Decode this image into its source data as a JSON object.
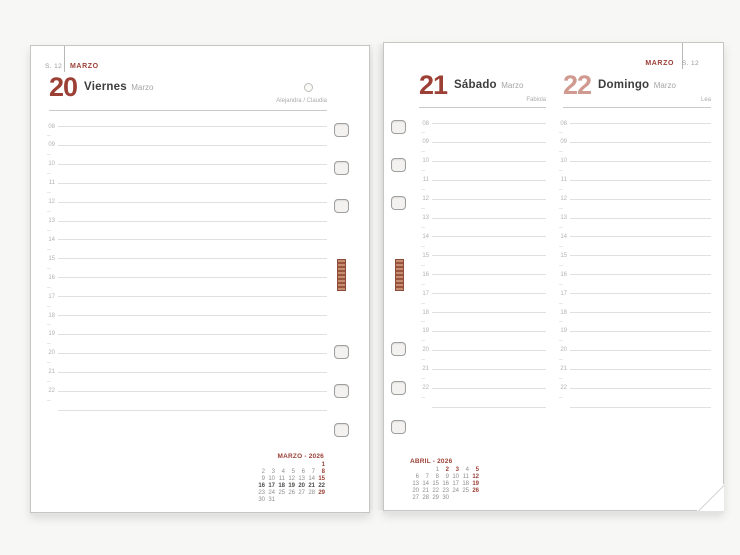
{
  "colors": {
    "accent": "#9c4036",
    "sunday_accent": "#d09a90",
    "text_dark": "#3d3d3d",
    "text_gray": "#a5a5a5",
    "line_gray": "#e0e0e0"
  },
  "hours": [
    "08",
    "09",
    "10",
    "11",
    "12",
    "13",
    "14",
    "15",
    "16",
    "17",
    "18",
    "19",
    "20",
    "21",
    "22"
  ],
  "left_page": {
    "week_label": "S. 12",
    "month_label": "MARZO",
    "day_number": "20",
    "day_name": "Viernes",
    "day_month": "Marzo",
    "saints": "Alejandra / Claudia",
    "icons": {
      "moon_phase": "circle-outline"
    },
    "mini_calendar": {
      "title": "MARZO - 2026",
      "weekday_start": "monday",
      "weeks": [
        [
          {
            "d": "",
            "cls": ""
          },
          {
            "d": "",
            "cls": ""
          },
          {
            "d": "",
            "cls": ""
          },
          {
            "d": "",
            "cls": ""
          },
          {
            "d": "",
            "cls": ""
          },
          {
            "d": "",
            "cls": ""
          },
          {
            "d": "1",
            "cls": "sun"
          }
        ],
        [
          {
            "d": "2",
            "cls": ""
          },
          {
            "d": "3",
            "cls": ""
          },
          {
            "d": "4",
            "cls": ""
          },
          {
            "d": "5",
            "cls": ""
          },
          {
            "d": "6",
            "cls": ""
          },
          {
            "d": "7",
            "cls": ""
          },
          {
            "d": "8",
            "cls": "sun"
          }
        ],
        [
          {
            "d": "9",
            "cls": ""
          },
          {
            "d": "10",
            "cls": ""
          },
          {
            "d": "11",
            "cls": ""
          },
          {
            "d": "12",
            "cls": ""
          },
          {
            "d": "13",
            "cls": ""
          },
          {
            "d": "14",
            "cls": ""
          },
          {
            "d": "15",
            "cls": "sun"
          }
        ],
        [
          {
            "d": "16",
            "cls": "cw"
          },
          {
            "d": "17",
            "cls": "cw"
          },
          {
            "d": "18",
            "cls": "cw"
          },
          {
            "d": "19",
            "cls": "cw"
          },
          {
            "d": "20",
            "cls": "today"
          },
          {
            "d": "21",
            "cls": "cw"
          },
          {
            "d": "22",
            "cls": "cw sun"
          }
        ],
        [
          {
            "d": "23",
            "cls": ""
          },
          {
            "d": "24",
            "cls": ""
          },
          {
            "d": "25",
            "cls": ""
          },
          {
            "d": "26",
            "cls": ""
          },
          {
            "d": "27",
            "cls": ""
          },
          {
            "d": "28",
            "cls": ""
          },
          {
            "d": "29",
            "cls": "sun"
          }
        ],
        [
          {
            "d": "30",
            "cls": ""
          },
          {
            "d": "31",
            "cls": ""
          },
          {
            "d": "",
            "cls": ""
          },
          {
            "d": "",
            "cls": ""
          },
          {
            "d": "",
            "cls": ""
          },
          {
            "d": "",
            "cls": ""
          },
          {
            "d": "",
            "cls": ""
          }
        ]
      ]
    }
  },
  "right_page": {
    "month_label": "MARZO",
    "week_label": "S. 12",
    "columns": [
      {
        "day_number": "21",
        "day_name": "Sábado",
        "day_month": "Marzo",
        "saints": "Fabiola"
      },
      {
        "day_number": "22",
        "day_name": "Domingo",
        "day_month": "Marzo",
        "saints": "Lea"
      }
    ],
    "mini_calendar": {
      "title": "ABRIL - 2026",
      "weekday_start": "monday",
      "weeks": [
        [
          {
            "d": "",
            "cls": ""
          },
          {
            "d": "",
            "cls": ""
          },
          {
            "d": "1",
            "cls": ""
          },
          {
            "d": "2",
            "cls": "hol"
          },
          {
            "d": "3",
            "cls": "hol"
          },
          {
            "d": "4",
            "cls": ""
          },
          {
            "d": "5",
            "cls": "sun"
          }
        ],
        [
          {
            "d": "6",
            "cls": ""
          },
          {
            "d": "7",
            "cls": ""
          },
          {
            "d": "8",
            "cls": ""
          },
          {
            "d": "9",
            "cls": ""
          },
          {
            "d": "10",
            "cls": ""
          },
          {
            "d": "11",
            "cls": ""
          },
          {
            "d": "12",
            "cls": "sun"
          }
        ],
        [
          {
            "d": "13",
            "cls": ""
          },
          {
            "d": "14",
            "cls": ""
          },
          {
            "d": "15",
            "cls": ""
          },
          {
            "d": "16",
            "cls": ""
          },
          {
            "d": "17",
            "cls": ""
          },
          {
            "d": "18",
            "cls": ""
          },
          {
            "d": "19",
            "cls": "sun"
          }
        ],
        [
          {
            "d": "20",
            "cls": ""
          },
          {
            "d": "21",
            "cls": ""
          },
          {
            "d": "22",
            "cls": ""
          },
          {
            "d": "23",
            "cls": ""
          },
          {
            "d": "24",
            "cls": ""
          },
          {
            "d": "25",
            "cls": ""
          },
          {
            "d": "26",
            "cls": "sun"
          }
        ],
        [
          {
            "d": "27",
            "cls": ""
          },
          {
            "d": "28",
            "cls": ""
          },
          {
            "d": "29",
            "cls": ""
          },
          {
            "d": "30",
            "cls": ""
          },
          {
            "d": "",
            "cls": ""
          },
          {
            "d": "",
            "cls": ""
          },
          {
            "d": "",
            "cls": ""
          }
        ]
      ]
    }
  }
}
